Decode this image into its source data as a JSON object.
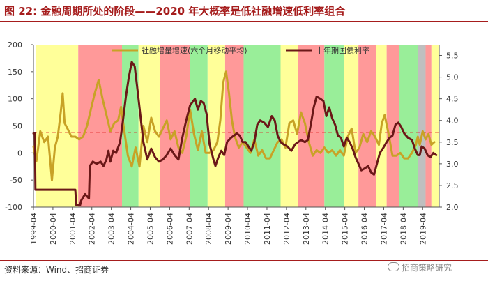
{
  "title": "图 22:  金融周期所处的阶段——2020 年大概率是低社融增速低利率组合",
  "source": "资料来源：Wind、招商证券",
  "watermark": "招商策略研究",
  "colors": {
    "brand_red": "#a61d1d",
    "social_financing_line": "#c8a226",
    "bond_yield_line": "#6b1818",
    "reference_line": "#e02020",
    "phase_yellow": "#ffff99",
    "phase_red": "#ff9999",
    "phase_green": "#99ee99",
    "phase_grey": "#bfbfbf"
  },
  "chart_data": {
    "type": "line",
    "title": "",
    "xlabel": "",
    "ylabel_left": "",
    "ylabel_right": "",
    "x_ticks": [
      "1999-04",
      "2000-04",
      "2001-04",
      "2002-04",
      "2003-04",
      "2004-04",
      "2005-04",
      "2006-04",
      "2007-04",
      "2008-04",
      "2009-04",
      "2010-04",
      "2011-04",
      "2012-04",
      "2013-04",
      "2014-04",
      "2015-04",
      "2016-04",
      "2017-04",
      "2018-04",
      "2019-04"
    ],
    "x_range": [
      1999.25,
      2020.1
    ],
    "y_left_range": [
      -100,
      200
    ],
    "y_left_ticks": [
      -100,
      -50,
      0,
      50,
      100,
      150,
      200
    ],
    "y_right_range": [
      2.0,
      5.75
    ],
    "y_right_ticks": [
      "2.0",
      "2.5",
      "3.0",
      "3.5",
      "4.0",
      "4.5",
      "5.0",
      "5.5"
    ],
    "reference_line": {
      "axis": "left",
      "value": 38,
      "style": "dashed"
    },
    "phases": [
      {
        "start": 1999.38,
        "end": 2001.55,
        "color": "yellow"
      },
      {
        "start": 2001.55,
        "end": 2003.8,
        "color": "red"
      },
      {
        "start": 2003.8,
        "end": 2004.65,
        "color": "green"
      },
      {
        "start": 2004.65,
        "end": 2005.75,
        "color": "yellow"
      },
      {
        "start": 2005.75,
        "end": 2007.3,
        "color": "red"
      },
      {
        "start": 2007.3,
        "end": 2008.2,
        "color": "green"
      },
      {
        "start": 2008.2,
        "end": 2009.1,
        "color": "yellow"
      },
      {
        "start": 2009.1,
        "end": 2010.05,
        "color": "red"
      },
      {
        "start": 2010.05,
        "end": 2011.95,
        "color": "green"
      },
      {
        "start": 2011.95,
        "end": 2012.85,
        "color": "yellow"
      },
      {
        "start": 2012.85,
        "end": 2014.2,
        "color": "red"
      },
      {
        "start": 2014.2,
        "end": 2015.2,
        "color": "green"
      },
      {
        "start": 2015.2,
        "end": 2015.95,
        "color": "yellow"
      },
      {
        "start": 2015.95,
        "end": 2016.85,
        "color": "red"
      },
      {
        "start": 2016.85,
        "end": 2017.4,
        "color": "yellow"
      },
      {
        "start": 2017.4,
        "end": 2018.05,
        "color": "red"
      },
      {
        "start": 2018.05,
        "end": 2019.0,
        "color": "green"
      },
      {
        "start": 2019.0,
        "end": 2019.4,
        "color": "grey"
      },
      {
        "start": 2019.4,
        "end": 2019.7,
        "color": "red"
      },
      {
        "start": 2019.7,
        "end": 2020.1,
        "color": "yellow"
      }
    ],
    "legend_position": "top-center",
    "series": [
      {
        "name": "社融增量增速(六个月移动平均)",
        "axis": "left",
        "color": "#c8a226",
        "points": [
          [
            1999.25,
            12
          ],
          [
            1999.4,
            -15
          ],
          [
            1999.6,
            40
          ],
          [
            1999.8,
            20
          ],
          [
            2000.0,
            30
          ],
          [
            2000.2,
            -50
          ],
          [
            2000.35,
            10
          ],
          [
            2000.5,
            30
          ],
          [
            2000.65,
            75
          ],
          [
            2000.75,
            110
          ],
          [
            2000.85,
            55
          ],
          [
            2001.0,
            45
          ],
          [
            2001.2,
            30
          ],
          [
            2001.4,
            30
          ],
          [
            2001.6,
            25
          ],
          [
            2001.8,
            30
          ],
          [
            2002.0,
            50
          ],
          [
            2002.2,
            80
          ],
          [
            2002.4,
            110
          ],
          [
            2002.6,
            135
          ],
          [
            2002.8,
            100
          ],
          [
            2003.0,
            70
          ],
          [
            2003.2,
            40
          ],
          [
            2003.4,
            55
          ],
          [
            2003.6,
            60
          ],
          [
            2003.75,
            85
          ],
          [
            2003.9,
            45
          ],
          [
            2004.1,
            -5
          ],
          [
            2004.3,
            -25
          ],
          [
            2004.5,
            10
          ],
          [
            2004.7,
            -25
          ],
          [
            2004.9,
            50
          ],
          [
            2005.1,
            20
          ],
          [
            2005.3,
            65
          ],
          [
            2005.5,
            40
          ],
          [
            2005.7,
            30
          ],
          [
            2005.9,
            45
          ],
          [
            2006.1,
            60
          ],
          [
            2006.3,
            25
          ],
          [
            2006.5,
            40
          ],
          [
            2006.7,
            10
          ],
          [
            2006.9,
            0
          ],
          [
            2007.1,
            30
          ],
          [
            2007.3,
            80
          ],
          [
            2007.5,
            35
          ],
          [
            2007.7,
            5
          ],
          [
            2007.9,
            40
          ],
          [
            2008.1,
            0
          ],
          [
            2008.3,
            0
          ],
          [
            2008.5,
            5
          ],
          [
            2008.7,
            20
          ],
          [
            2008.85,
            60
          ],
          [
            2009.0,
            130
          ],
          [
            2009.15,
            150
          ],
          [
            2009.3,
            110
          ],
          [
            2009.45,
            60
          ],
          [
            2009.6,
            30
          ],
          [
            2009.8,
            10
          ],
          [
            2010.0,
            20
          ],
          [
            2010.2,
            10
          ],
          [
            2010.4,
            0
          ],
          [
            2010.6,
            25
          ],
          [
            2010.8,
            -5
          ],
          [
            2011.0,
            5
          ],
          [
            2011.2,
            -10
          ],
          [
            2011.4,
            -10
          ],
          [
            2011.6,
            5
          ],
          [
            2011.8,
            20
          ],
          [
            2012.0,
            25
          ],
          [
            2012.2,
            10
          ],
          [
            2012.4,
            55
          ],
          [
            2012.6,
            60
          ],
          [
            2012.8,
            35
          ],
          [
            2013.0,
            75
          ],
          [
            2013.2,
            55
          ],
          [
            2013.4,
            20
          ],
          [
            2013.6,
            -5
          ],
          [
            2013.8,
            5
          ],
          [
            2014.0,
            0
          ],
          [
            2014.2,
            10
          ],
          [
            2014.4,
            0
          ],
          [
            2014.6,
            5
          ],
          [
            2014.8,
            -5
          ],
          [
            2015.0,
            5
          ],
          [
            2015.2,
            -5
          ],
          [
            2015.4,
            30
          ],
          [
            2015.6,
            45
          ],
          [
            2015.8,
            0
          ],
          [
            2016.0,
            10
          ],
          [
            2016.2,
            35
          ],
          [
            2016.4,
            20
          ],
          [
            2016.6,
            40
          ],
          [
            2016.8,
            30
          ],
          [
            2017.0,
            15
          ],
          [
            2017.15,
            55
          ],
          [
            2017.3,
            70
          ],
          [
            2017.5,
            35
          ],
          [
            2017.7,
            -5
          ],
          [
            2017.9,
            -5
          ],
          [
            2018.1,
            0
          ],
          [
            2018.3,
            -10
          ],
          [
            2018.5,
            -10
          ],
          [
            2018.7,
            0
          ],
          [
            2018.9,
            15
          ],
          [
            2019.0,
            30
          ],
          [
            2019.1,
            15
          ],
          [
            2019.25,
            40
          ],
          [
            2019.4,
            25
          ],
          [
            2019.55,
            35
          ],
          [
            2019.7,
            15
          ],
          [
            2019.85,
            20
          ]
        ]
      },
      {
        "name": "十年期国债利率",
        "axis": "right",
        "color": "#6b1818",
        "points": [
          [
            1999.25,
            3.7
          ],
          [
            1999.32,
            3.7
          ],
          [
            1999.35,
            2.4
          ],
          [
            2000.0,
            2.4
          ],
          [
            2000.7,
            2.4
          ],
          [
            2001.0,
            2.4
          ],
          [
            2001.4,
            2.4
          ],
          [
            2001.45,
            2.05
          ],
          [
            2001.55,
            2.05
          ],
          [
            2001.65,
            2.05
          ],
          [
            2001.7,
            2.15
          ],
          [
            2001.9,
            2.3
          ],
          [
            2002.1,
            2.2
          ],
          [
            2002.15,
            2.95
          ],
          [
            2002.3,
            3.05
          ],
          [
            2002.5,
            3.0
          ],
          [
            2002.7,
            3.05
          ],
          [
            2002.85,
            2.95
          ],
          [
            2003.0,
            3.1
          ],
          [
            2003.1,
            3.3
          ],
          [
            2003.2,
            3.05
          ],
          [
            2003.35,
            3.3
          ],
          [
            2003.5,
            3.25
          ],
          [
            2003.7,
            3.5
          ],
          [
            2003.85,
            4.0
          ],
          [
            2004.0,
            4.55
          ],
          [
            2004.15,
            5.0
          ],
          [
            2004.3,
            5.35
          ],
          [
            2004.45,
            5.25
          ],
          [
            2004.6,
            4.7
          ],
          [
            2004.75,
            4.1
          ],
          [
            2004.9,
            3.5
          ],
          [
            2005.0,
            3.3
          ],
          [
            2005.1,
            3.1
          ],
          [
            2005.3,
            3.35
          ],
          [
            2005.5,
            3.15
          ],
          [
            2005.7,
            3.05
          ],
          [
            2005.9,
            3.1
          ],
          [
            2006.1,
            3.2
          ],
          [
            2006.3,
            3.35
          ],
          [
            2006.5,
            3.2
          ],
          [
            2006.7,
            3.1
          ],
          [
            2006.9,
            3.6
          ],
          [
            2007.1,
            4.0
          ],
          [
            2007.3,
            4.35
          ],
          [
            2007.55,
            4.5
          ],
          [
            2007.7,
            4.25
          ],
          [
            2007.85,
            4.45
          ],
          [
            2008.0,
            4.4
          ],
          [
            2008.15,
            4.15
          ],
          [
            2008.3,
            3.45
          ],
          [
            2008.5,
            3.1
          ],
          [
            2008.6,
            2.95
          ],
          [
            2008.75,
            3.15
          ],
          [
            2008.9,
            3.3
          ],
          [
            2009.05,
            3.2
          ],
          [
            2009.2,
            3.5
          ],
          [
            2009.4,
            3.6
          ],
          [
            2009.55,
            3.65
          ],
          [
            2009.7,
            3.7
          ],
          [
            2009.85,
            3.65
          ],
          [
            2010.0,
            3.5
          ],
          [
            2010.15,
            3.5
          ],
          [
            2010.3,
            3.4
          ],
          [
            2010.45,
            3.3
          ],
          [
            2010.6,
            3.5
          ],
          [
            2010.75,
            3.9
          ],
          [
            2010.9,
            4.0
          ],
          [
            2011.1,
            3.95
          ],
          [
            2011.3,
            3.85
          ],
          [
            2011.5,
            4.1
          ],
          [
            2011.65,
            4.0
          ],
          [
            2011.8,
            3.65
          ],
          [
            2011.95,
            3.5
          ],
          [
            2012.1,
            3.45
          ],
          [
            2012.3,
            3.4
          ],
          [
            2012.5,
            3.3
          ],
          [
            2012.7,
            3.45
          ],
          [
            2012.85,
            3.5
          ],
          [
            2013.0,
            3.55
          ],
          [
            2013.2,
            3.5
          ],
          [
            2013.35,
            3.55
          ],
          [
            2013.5,
            3.9
          ],
          [
            2013.65,
            4.3
          ],
          [
            2013.8,
            4.55
          ],
          [
            2014.0,
            4.5
          ],
          [
            2014.15,
            4.45
          ],
          [
            2014.3,
            4.1
          ],
          [
            2014.45,
            4.3
          ],
          [
            2014.6,
            4.05
          ],
          [
            2014.75,
            3.9
          ],
          [
            2014.9,
            3.65
          ],
          [
            2015.05,
            3.6
          ],
          [
            2015.2,
            3.4
          ],
          [
            2015.35,
            3.6
          ],
          [
            2015.5,
            3.5
          ],
          [
            2015.65,
            3.35
          ],
          [
            2015.8,
            3.15
          ],
          [
            2015.95,
            3.0
          ],
          [
            2016.1,
            2.85
          ],
          [
            2016.3,
            2.9
          ],
          [
            2016.45,
            2.95
          ],
          [
            2016.6,
            2.8
          ],
          [
            2016.75,
            2.75
          ],
          [
            2016.9,
            3.0
          ],
          [
            2017.05,
            3.25
          ],
          [
            2017.2,
            3.35
          ],
          [
            2017.4,
            3.5
          ],
          [
            2017.55,
            3.6
          ],
          [
            2017.7,
            3.65
          ],
          [
            2017.85,
            3.9
          ],
          [
            2018.0,
            3.95
          ],
          [
            2018.15,
            3.85
          ],
          [
            2018.3,
            3.7
          ],
          [
            2018.5,
            3.6
          ],
          [
            2018.7,
            3.55
          ],
          [
            2018.85,
            3.35
          ],
          [
            2019.0,
            3.2
          ],
          [
            2019.1,
            3.2
          ],
          [
            2019.2,
            3.4
          ],
          [
            2019.35,
            3.35
          ],
          [
            2019.5,
            3.2
          ],
          [
            2019.65,
            3.15
          ],
          [
            2019.8,
            3.25
          ],
          [
            2019.95,
            3.2
          ]
        ]
      }
    ]
  }
}
